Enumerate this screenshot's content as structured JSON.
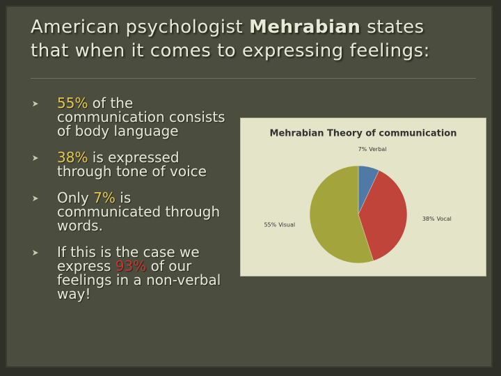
{
  "title": {
    "before": "American psychologist ",
    "emphasis": "Mehrabian",
    "after": " states that when it comes to expressing feelings:"
  },
  "bullets": [
    [
      {
        "text": "55%",
        "color": "#e6c84a"
      },
      {
        "text": " of the communication consists of body language"
      }
    ],
    [
      {
        "text": "38%",
        "color": "#e6c84a"
      },
      {
        "text": " is expressed through tone of voice"
      }
    ],
    [
      {
        "text": "Only "
      },
      {
        "text": "7%",
        "color": "#e6c84a"
      },
      {
        "text": " is communicated through words."
      }
    ],
    [
      {
        "text": "If this is the case we express "
      },
      {
        "text": "93%",
        "color": "#c8372d"
      },
      {
        "text": " of our feelings in a non-verbal way!"
      }
    ]
  ],
  "chart_data": {
    "type": "pie",
    "title": "Mehrabian Theory of communication",
    "categories": [
      "Verbal",
      "Vocal",
      "Visual"
    ],
    "values": [
      7,
      38,
      55
    ],
    "value_labels": [
      "7%",
      "38%",
      "55%"
    ],
    "colors": [
      "#4f7aa8",
      "#c0443a",
      "#a4a43c"
    ]
  }
}
